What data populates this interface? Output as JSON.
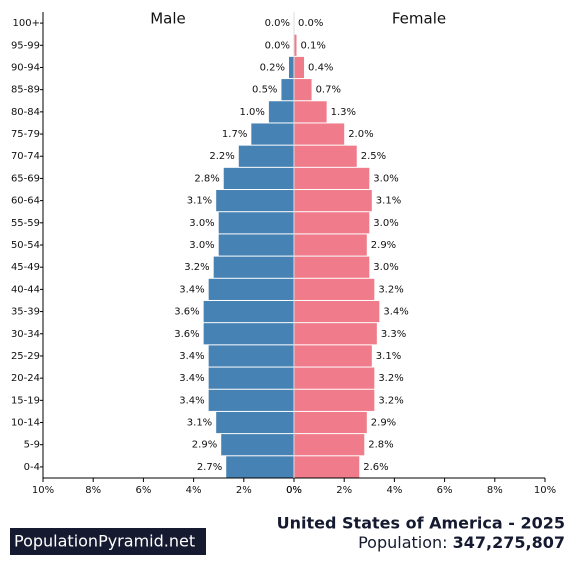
{
  "chart_data": {
    "type": "population-pyramid",
    "categories": [
      "100+",
      "95-99",
      "90-94",
      "85-89",
      "80-84",
      "75-79",
      "70-74",
      "65-69",
      "60-64",
      "55-59",
      "50-54",
      "45-49",
      "40-44",
      "35-39",
      "30-34",
      "25-29",
      "20-24",
      "15-19",
      "10-14",
      "5-9",
      "0-4"
    ],
    "series": [
      {
        "name": "Male",
        "color": "#4682b4",
        "values": [
          0.0,
          0.0,
          0.2,
          0.5,
          1.0,
          1.7,
          2.2,
          2.8,
          3.1,
          3.0,
          3.0,
          3.2,
          3.4,
          3.6,
          3.6,
          3.4,
          3.4,
          3.4,
          3.1,
          2.9,
          2.7
        ],
        "value_labels": [
          "0.0%",
          "0.0%",
          "0.2%",
          "0.5%",
          "1.0%",
          "1.7%",
          "2.2%",
          "2.8%",
          "3.1%",
          "3.0%",
          "3.0%",
          "3.2%",
          "3.4%",
          "3.6%",
          "3.6%",
          "3.4%",
          "3.4%",
          "3.4%",
          "3.1%",
          "2.9%",
          "2.7%"
        ]
      },
      {
        "name": "Female",
        "color": "#f07b8a",
        "values": [
          0.0,
          0.1,
          0.4,
          0.7,
          1.3,
          2.0,
          2.5,
          3.0,
          3.1,
          3.0,
          2.9,
          3.0,
          3.2,
          3.4,
          3.3,
          3.1,
          3.2,
          3.2,
          2.9,
          2.8,
          2.6
        ],
        "value_labels": [
          "0.0%",
          "0.1%",
          "0.4%",
          "0.7%",
          "1.3%",
          "2.0%",
          "2.5%",
          "3.0%",
          "3.1%",
          "3.0%",
          "2.9%",
          "3.0%",
          "3.2%",
          "3.4%",
          "3.3%",
          "3.1%",
          "3.2%",
          "3.2%",
          "2.9%",
          "2.8%",
          "2.6%"
        ]
      }
    ],
    "xlim": [
      0,
      10
    ],
    "male_xticks": [
      {
        "value": 10,
        "label": "10%"
      },
      {
        "value": 8,
        "label": "8%"
      },
      {
        "value": 6,
        "label": "6%"
      },
      {
        "value": 4,
        "label": "4%"
      },
      {
        "value": 2,
        "label": "2%"
      },
      {
        "value": 0,
        "label": "0%"
      }
    ],
    "female_xticks": [
      {
        "value": 0,
        "label": "0%"
      },
      {
        "value": 2,
        "label": "2%"
      },
      {
        "value": 4,
        "label": "4%"
      },
      {
        "value": 6,
        "label": "6%"
      },
      {
        "value": 8,
        "label": "8%"
      },
      {
        "value": 10,
        "label": "10%"
      }
    ],
    "footer": {
      "brand": "PopulationPyramid.net",
      "title": "United States of America - 2025",
      "population_label": "Population:",
      "population": "347,275,807"
    }
  }
}
